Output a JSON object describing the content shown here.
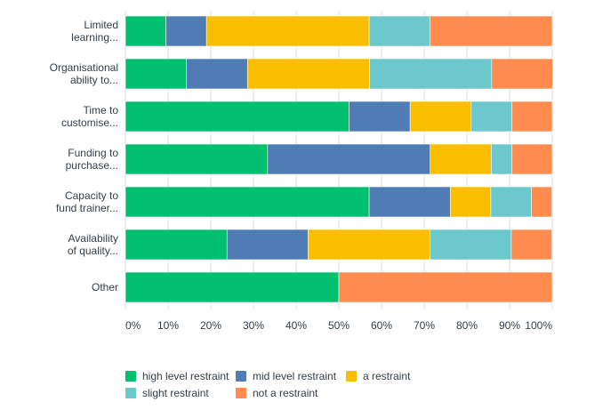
{
  "chart_data": {
    "type": "bar",
    "orientation": "horizontal",
    "stacked": true,
    "percent_scale": true,
    "categories": [
      [
        "Limited",
        "learning..."
      ],
      [
        "Organisational",
        "ability to..."
      ],
      [
        "Time to",
        "customise..."
      ],
      [
        "Funding to",
        "purchase..."
      ],
      [
        "Capacity to",
        "fund trainer..."
      ],
      [
        "Availability",
        "of quality..."
      ],
      [
        "Other"
      ]
    ],
    "series": [
      {
        "name": "high level restraint",
        "color": "#00bf6f",
        "values": [
          9.5,
          14.3,
          52.4,
          33.3,
          57.1,
          23.8,
          50.0
        ]
      },
      {
        "name": "mid level restraint",
        "color": "#507cb6",
        "values": [
          9.5,
          14.3,
          14.3,
          38.1,
          19.0,
          19.0,
          0
        ]
      },
      {
        "name": "a restraint",
        "color": "#f9be00",
        "values": [
          38.1,
          28.6,
          14.3,
          14.3,
          9.5,
          28.6,
          0
        ]
      },
      {
        "name": "slight restraint",
        "color": "#6bc8cd",
        "values": [
          14.3,
          28.6,
          9.5,
          4.8,
          9.5,
          19.0,
          0
        ]
      },
      {
        "name": "not a restraint",
        "color": "#ff8b4f",
        "values": [
          28.6,
          14.3,
          9.5,
          9.5,
          4.8,
          9.5,
          50.0
        ]
      }
    ],
    "xticks": [
      "0%",
      "10%",
      "20%",
      "30%",
      "40%",
      "50%",
      "60%",
      "70%",
      "80%",
      "90%",
      "100%"
    ],
    "xlim": [
      0,
      100
    ],
    "grid": true,
    "legend_position": "bottom-left"
  }
}
